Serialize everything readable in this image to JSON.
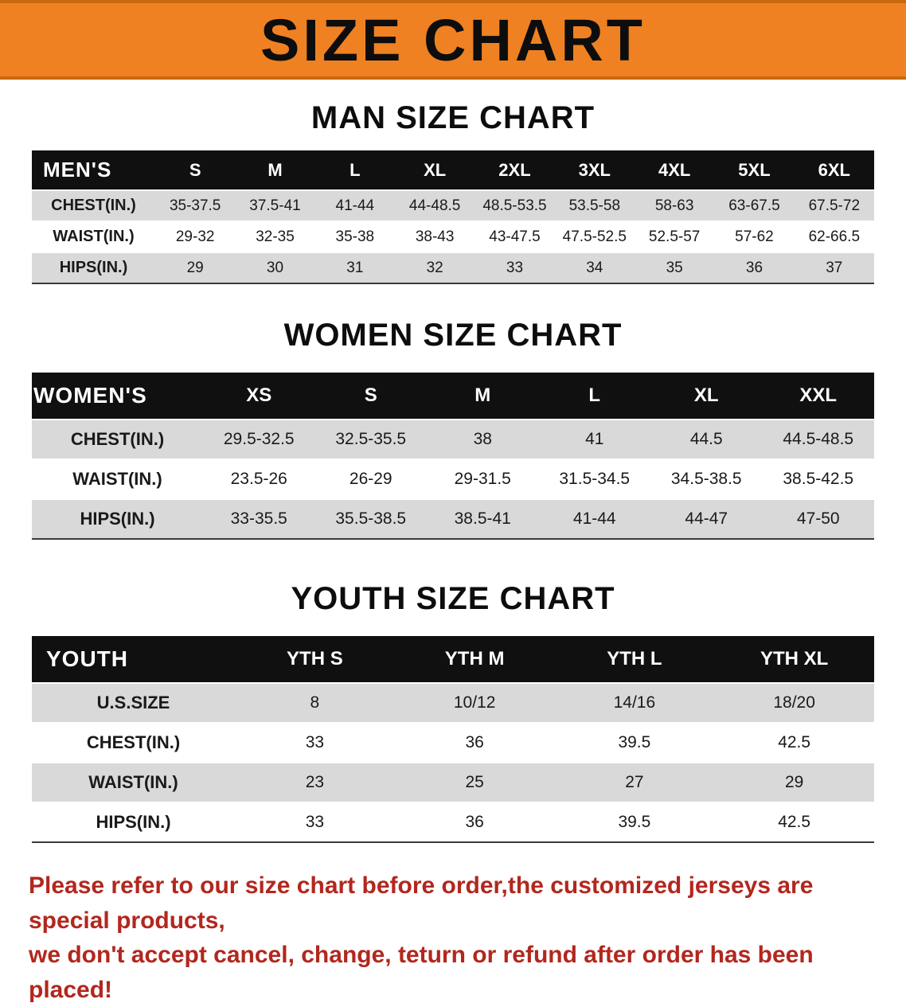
{
  "banner": {
    "title": "SIZE CHART"
  },
  "colors": {
    "banner_orange": "#EF8122",
    "banner_edge": "#C8690F",
    "table_header_black": "#101010",
    "row_stripe_gray": "#d9d9d9",
    "disclaimer_red": "#B2271E"
  },
  "sections": [
    {
      "heading": "MAN SIZE CHART",
      "table": {
        "header": [
          "MEN'S",
          "S",
          "M",
          "L",
          "XL",
          "2XL",
          "3XL",
          "4XL",
          "5XL",
          "6XL"
        ],
        "rows": [
          [
            "CHEST(IN.)",
            "35-37.5",
            "37.5-41",
            "41-44",
            "44-48.5",
            "48.5-53.5",
            "53.5-58",
            "58-63",
            "63-67.5",
            "67.5-72"
          ],
          [
            "WAIST(IN.)",
            "29-32",
            "32-35",
            "35-38",
            "38-43",
            "43-47.5",
            "47.5-52.5",
            "52.5-57",
            "57-62",
            "62-66.5"
          ],
          [
            "HIPS(IN.)",
            "29",
            "30",
            "31",
            "32",
            "33",
            "34",
            "35",
            "36",
            "37"
          ]
        ]
      }
    },
    {
      "heading": "WOMEN SIZE CHART",
      "table": {
        "header": [
          "WOMEN'S",
          "XS",
          "S",
          "M",
          "L",
          "XL",
          "XXL"
        ],
        "rows": [
          [
            "CHEST(IN.)",
            "29.5-32.5",
            "32.5-35.5",
            "38",
            "41",
            "44.5",
            "44.5-48.5"
          ],
          [
            "WAIST(IN.)",
            "23.5-26",
            "26-29",
            "29-31.5",
            "31.5-34.5",
            "34.5-38.5",
            "38.5-42.5"
          ],
          [
            "HIPS(IN.)",
            "33-35.5",
            "35.5-38.5",
            "38.5-41",
            "41-44",
            "44-47",
            "47-50"
          ]
        ]
      }
    },
    {
      "heading": "YOUTH SIZE CHART",
      "table": {
        "header": [
          "YOUTH",
          "YTH S",
          "YTH M",
          "YTH L",
          "YTH XL"
        ],
        "rows": [
          [
            "U.S.SIZE",
            "8",
            "10/12",
            "14/16",
            "18/20"
          ],
          [
            "CHEST(IN.)",
            "33",
            "36",
            "39.5",
            "42.5"
          ],
          [
            "WAIST(IN.)",
            "23",
            "25",
            "27",
            "29"
          ],
          [
            "HIPS(IN.)",
            "33",
            "36",
            "39.5",
            "42.5"
          ]
        ]
      }
    }
  ],
  "disclaimer": {
    "lines": [
      "Please refer to our size chart before order,the customized jerseys are special products,",
      "we don't accept cancel, change, teturn or refund after order has been placed!"
    ]
  }
}
